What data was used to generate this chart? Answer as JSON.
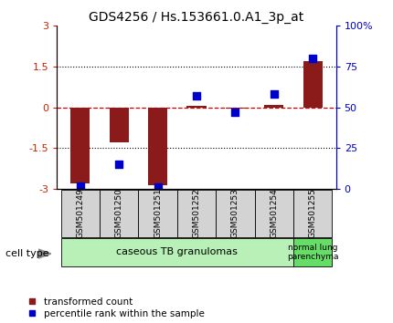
{
  "title": "GDS4256 / Hs.153661.0.A1_3p_at",
  "samples": [
    "GSM501249",
    "GSM501250",
    "GSM501251",
    "GSM501252",
    "GSM501253",
    "GSM501254",
    "GSM501255"
  ],
  "transformed_count": [
    -2.8,
    -1.3,
    -2.85,
    0.05,
    -0.05,
    0.1,
    1.7
  ],
  "percentile_rank": [
    2,
    15,
    1,
    57,
    47,
    58,
    80
  ],
  "ylim_left": [
    -3,
    3
  ],
  "ylim_right": [
    0,
    100
  ],
  "yticks_left": [
    -3,
    -1.5,
    0,
    1.5,
    3
  ],
  "yticks_right": [
    0,
    25,
    50,
    75,
    100
  ],
  "ytick_labels_left": [
    "-3",
    "-1.5",
    "0",
    "1.5",
    "3"
  ],
  "ytick_labels_right": [
    "0",
    "25",
    "50",
    "75",
    "100%"
  ],
  "cell_groups": [
    {
      "label": "caseous TB granulomas",
      "color": "#b8f0b8",
      "start": 0,
      "end": 5
    },
    {
      "label": "normal lung\nparenchyma",
      "color": "#66dd66",
      "start": 5,
      "end": 6
    }
  ],
  "bar_color": "#8B1A1A",
  "dot_color": "#0000CC",
  "zero_line_color": "#CC0000",
  "grid_color": "#000000",
  "sample_box_color": "#d3d3d3",
  "legend_red_label": "transformed count",
  "legend_blue_label": "percentile rank within the sample",
  "cell_type_label": "cell type",
  "bar_width": 0.5
}
